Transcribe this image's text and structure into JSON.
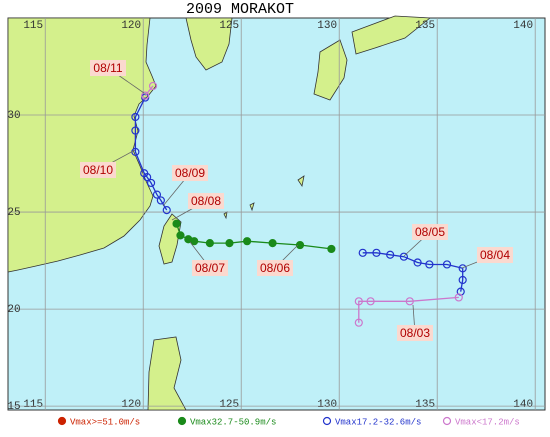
{
  "title": "2009 MORAKOT",
  "map": {
    "lonlim": [
      113.1,
      140.5
    ],
    "latlim": [
      14.8,
      35.0
    ],
    "lon_ticks": [
      115,
      120,
      125,
      130,
      135,
      140
    ],
    "lat_ticks": [
      15,
      20,
      25,
      30
    ]
  },
  "tracks": [
    {
      "name": "Vmax>=51.0m/s",
      "color": "#cc2200",
      "lon": [],
      "lat": []
    },
    {
      "name": "Vmax32.7-50.9m/s",
      "color": "#1a8a1a",
      "lon": [
        121.7,
        121.9,
        122.3,
        122.6,
        123.4,
        124.4,
        125.3,
        126.6,
        128.0,
        129.6
      ],
      "lat": [
        24.4,
        23.8,
        23.6,
        23.5,
        23.4,
        23.4,
        23.5,
        23.4,
        23.3,
        23.1
      ]
    },
    {
      "name": "Vmax17.2-32.6m/s",
      "color": "#2233cc",
      "lon": [
        131.2,
        131.9,
        132.6,
        133.3,
        134.0,
        134.6,
        135.5,
        136.3,
        136.3,
        136.2,
        null,
        121.2,
        120.9,
        120.7,
        120.4,
        120.2,
        120.05,
        119.6,
        119.6,
        119.6,
        120.1
      ],
      "lat": [
        22.9,
        22.9,
        22.8,
        22.7,
        22.4,
        22.3,
        22.3,
        22.1,
        21.5,
        20.9,
        null,
        25.1,
        25.6,
        25.9,
        26.5,
        26.8,
        27.0,
        28.1,
        29.2,
        29.9,
        30.9
      ]
    },
    {
      "name": "Vmax<17.2m/s",
      "color": "#cc77cc",
      "lon": [
        131.0,
        131.0,
        131.6,
        133.6,
        136.1,
        null,
        120.1,
        120.5
      ],
      "lat": [
        19.3,
        20.4,
        20.4,
        20.4,
        20.6,
        null,
        31.0,
        31.5
      ]
    }
  ],
  "date_labels": [
    "08/11",
    "08/10",
    "08/09",
    "08/08",
    "08/07",
    "08/06",
    "08/05",
    "08/04",
    "08/03"
  ]
}
